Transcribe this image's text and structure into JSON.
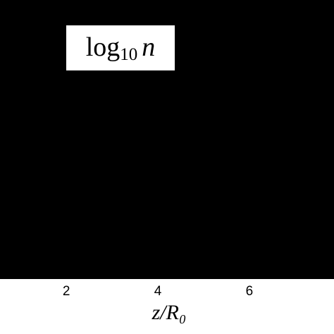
{
  "chart_data": {
    "type": "heatmap",
    "annotation": {
      "function": "log",
      "base": "10",
      "variable": "n"
    },
    "xlabel": "z/R₀",
    "xlim": [
      0.55,
      7.85
    ],
    "xticks": [
      2,
      4,
      6
    ]
  }
}
